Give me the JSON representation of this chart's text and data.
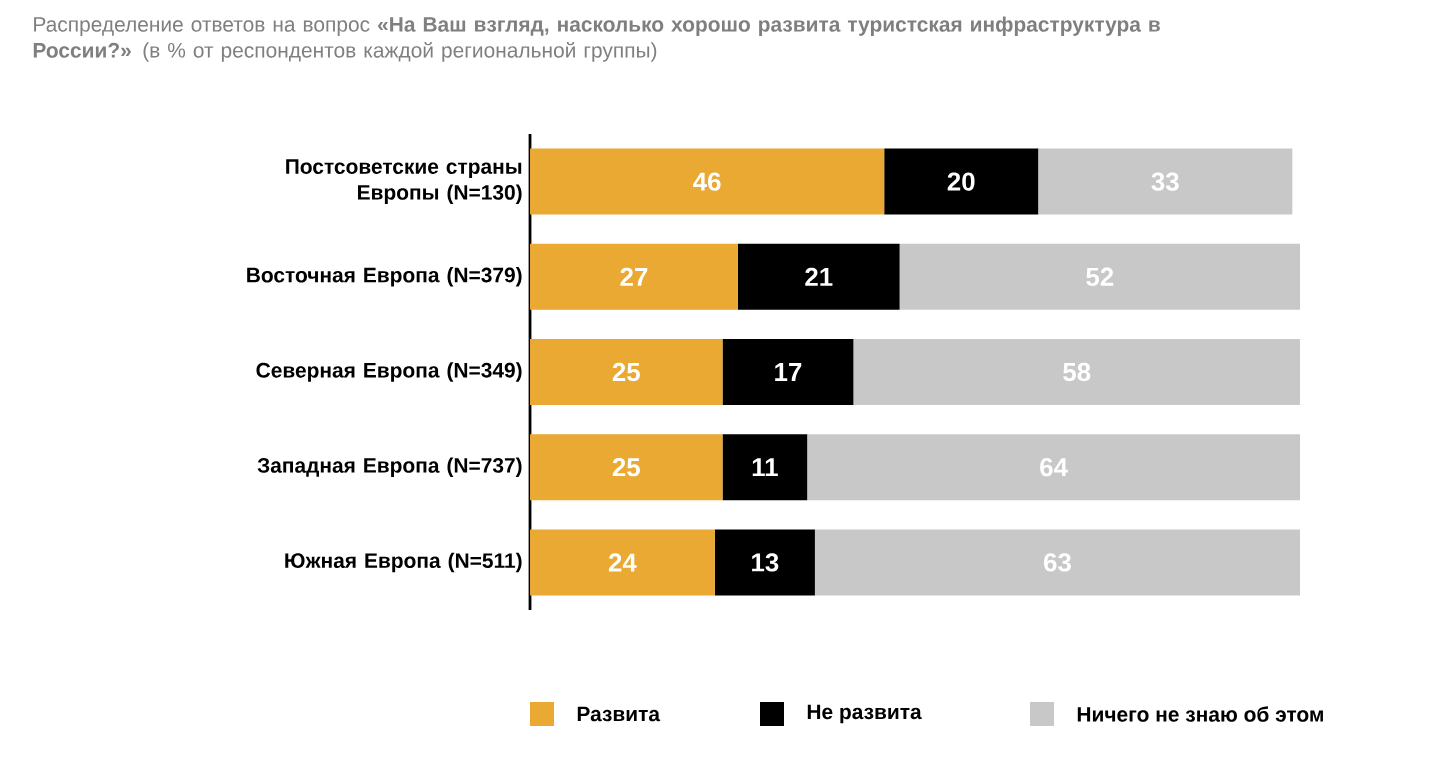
{
  "chart_data": {
    "type": "bar",
    "orientation": "horizontal",
    "stacked": true,
    "data_labels": true,
    "legend": "bottom",
    "title": "Распределение ответов на вопрос **«На Ваш взгляд, насколько хорошо развита туристская инфраструктура в России?»**  (в % от респондентов каждой региональной группы)",
    "categories": [
      "Постсоветские страны Европы (N=130)",
      "Восточная Европа (N=379)",
      "Северная Европа (N=349)",
      "Западная Европа (N=737)",
      "Южная Европа (N=511)"
    ],
    "series": [
      {
        "name": "Развита",
        "color": "#e9a932",
        "values": [
          46,
          27,
          25,
          25,
          24
        ]
      },
      {
        "name": "Не развита",
        "color": "#000000",
        "values": [
          20,
          21,
          17,
          11,
          13
        ]
      },
      {
        "name": "Ничего не знаю об этом",
        "color": "#c9c8c8",
        "values": [
          33,
          52,
          58,
          64,
          63
        ]
      }
    ]
  }
}
